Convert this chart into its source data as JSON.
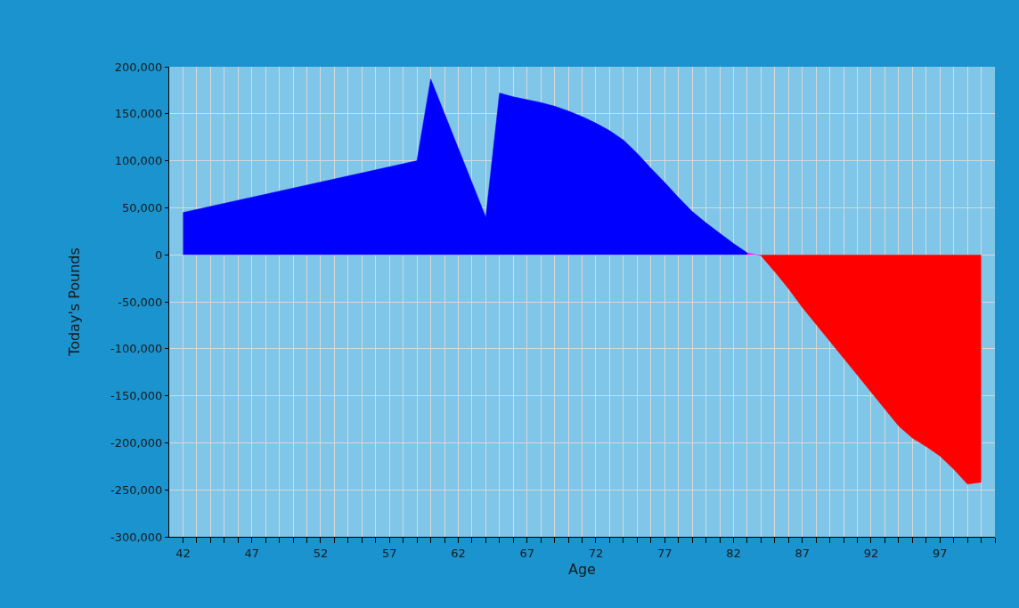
{
  "chart_data": {
    "type": "area",
    "xlabel": "Age",
    "ylabel": "Today's Pounds",
    "series": [
      {
        "color": "#0000ff",
        "x": [
          42,
          59,
          60,
          64,
          65,
          66,
          67,
          68,
          69,
          70,
          71,
          72,
          73,
          74,
          75,
          76,
          77,
          78,
          79,
          80,
          81,
          82,
          83
        ],
        "values": [
          45000,
          100000,
          187000,
          40000,
          172000,
          168000,
          165000,
          162000,
          158000,
          153000,
          147000,
          140000,
          132000,
          122000,
          108000,
          92000,
          77000,
          61000,
          46000,
          34000,
          23000,
          12000,
          2000
        ]
      },
      {
        "color": "#ff00ff",
        "x": [
          83,
          84
        ],
        "values": [
          2000,
          -1000
        ]
      },
      {
        "color": "#ff0000",
        "x": [
          84,
          85,
          86,
          87,
          88,
          89,
          90,
          91,
          92,
          93,
          94,
          95,
          96,
          97,
          98,
          99,
          100
        ],
        "values": [
          -1000,
          -18000,
          -36000,
          -56000,
          -74000,
          -92000,
          -110000,
          -128000,
          -146000,
          -164000,
          -182000,
          -195000,
          -204000,
          -214000,
          -228000,
          -244000,
          -242000
        ]
      }
    ],
    "xlim": [
      41,
      101
    ],
    "xticks": [
      42,
      {
        "value": 43,
        "label": null
      },
      {
        "value": 44,
        "label": null
      },
      {
        "value": 45,
        "label": null
      },
      {
        "value": 46,
        "label": null
      },
      47,
      {
        "value": 48,
        "label": null
      },
      {
        "value": 49,
        "label": null
      },
      {
        "value": 50,
        "label": null
      },
      {
        "value": 51,
        "label": null
      },
      52,
      {
        "value": 53,
        "label": null
      },
      {
        "value": 54,
        "label": null
      },
      {
        "value": 55,
        "label": null
      },
      {
        "value": 56,
        "label": null
      },
      57,
      {
        "value": 58,
        "label": null
      },
      {
        "value": 59,
        "label": null
      },
      {
        "value": 60,
        "label": null
      },
      {
        "value": 61,
        "label": null
      },
      62,
      {
        "value": 63,
        "label": null
      },
      {
        "value": 64,
        "label": null
      },
      {
        "value": 65,
        "label": null
      },
      {
        "value": 66,
        "label": null
      },
      67,
      {
        "value": 68,
        "label": null
      },
      {
        "value": 69,
        "label": null
      },
      {
        "value": 70,
        "label": null
      },
      {
        "value": 71,
        "label": null
      },
      72,
      {
        "value": 73,
        "label": null
      },
      {
        "value": 74,
        "label": null
      },
      {
        "value": 75,
        "label": null
      },
      {
        "value": 76,
        "label": null
      },
      77,
      {
        "value": 78,
        "label": null
      },
      {
        "value": 79,
        "label": null
      },
      {
        "value": 80,
        "label": null
      },
      {
        "value": 81,
        "label": null
      },
      82,
      {
        "value": 83,
        "label": null
      },
      {
        "value": 84,
        "label": null
      },
      {
        "value": 85,
        "label": null
      },
      {
        "value": 86,
        "label": null
      },
      87,
      {
        "value": 88,
        "label": null
      },
      {
        "value": 89,
        "label": null
      },
      {
        "value": 90,
        "label": null
      },
      {
        "value": 91,
        "label": null
      },
      92,
      {
        "value": 93,
        "label": null
      },
      {
        "value": 94,
        "label": null
      },
      {
        "value": 95,
        "label": null
      },
      {
        "value": 96,
        "label": null
      },
      97,
      {
        "value": 98,
        "label": null
      },
      {
        "value": 99,
        "label": null
      },
      {
        "value": 100,
        "label": null
      },
      {
        "value": 101,
        "label": null
      }
    ],
    "ylim": [
      -300000,
      200000
    ],
    "yticks": [
      {
        "value": -300000,
        "label": "-300,000"
      },
      {
        "value": -250000,
        "label": "-250,000"
      },
      {
        "value": -200000,
        "label": "-200,000"
      },
      {
        "value": -150000,
        "label": "-150,000"
      },
      {
        "value": -100000,
        "label": "-100,000"
      },
      {
        "value": -50000,
        "label": "-50,000"
      },
      0,
      {
        "value": 50000,
        "label": "50,000"
      },
      {
        "value": 100000,
        "label": "100,000"
      },
      {
        "value": 150000,
        "label": "150,000"
      },
      {
        "value": 200000,
        "label": "200,000"
      }
    ],
    "grid": true
  }
}
